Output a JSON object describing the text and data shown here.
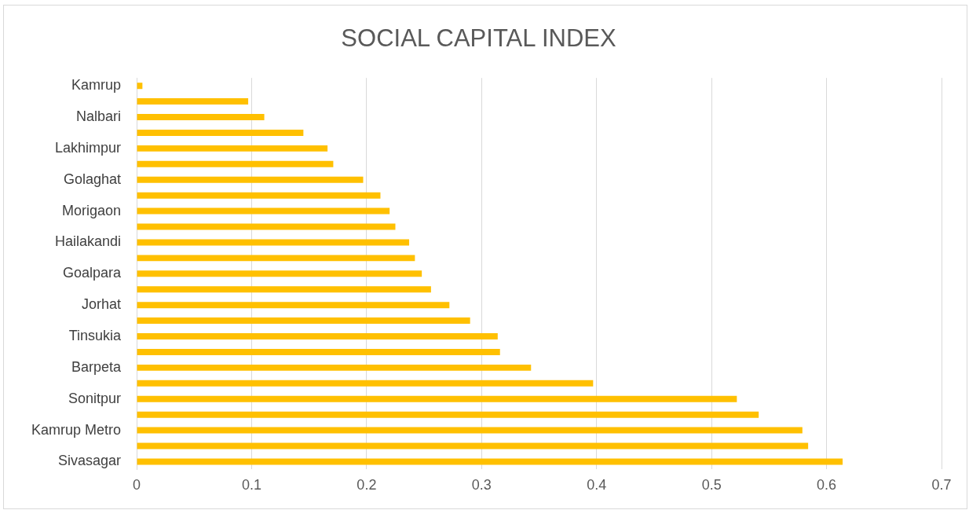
{
  "chart_data": {
    "type": "bar",
    "orientation": "horizontal",
    "title": "SOCIAL CAPITAL INDEX",
    "categories": [
      "Kamrup",
      null,
      "Nalbari",
      null,
      "Lakhimpur",
      null,
      "Golaghat",
      null,
      "Morigaon",
      null,
      "Hailakandi",
      null,
      "Goalpara",
      null,
      "Jorhat",
      null,
      "Tinsukia",
      null,
      "Barpeta",
      null,
      "Sonitpur",
      null,
      "Kamrup Metro",
      null,
      "Sivasagar"
    ],
    "values": [
      0.005,
      0.097,
      0.111,
      0.145,
      0.166,
      0.171,
      0.197,
      0.212,
      0.22,
      0.225,
      0.237,
      0.242,
      0.248,
      0.256,
      0.272,
      0.29,
      0.314,
      0.316,
      0.343,
      0.397,
      0.522,
      0.541,
      0.579,
      0.584,
      0.614
    ],
    "color": "#ffc000",
    "xlim": [
      0,
      0.7
    ],
    "xticks": [
      0,
      0.1,
      0.2,
      0.3,
      0.4,
      0.5,
      0.6,
      0.7
    ],
    "grid": "x",
    "legend": false
  }
}
